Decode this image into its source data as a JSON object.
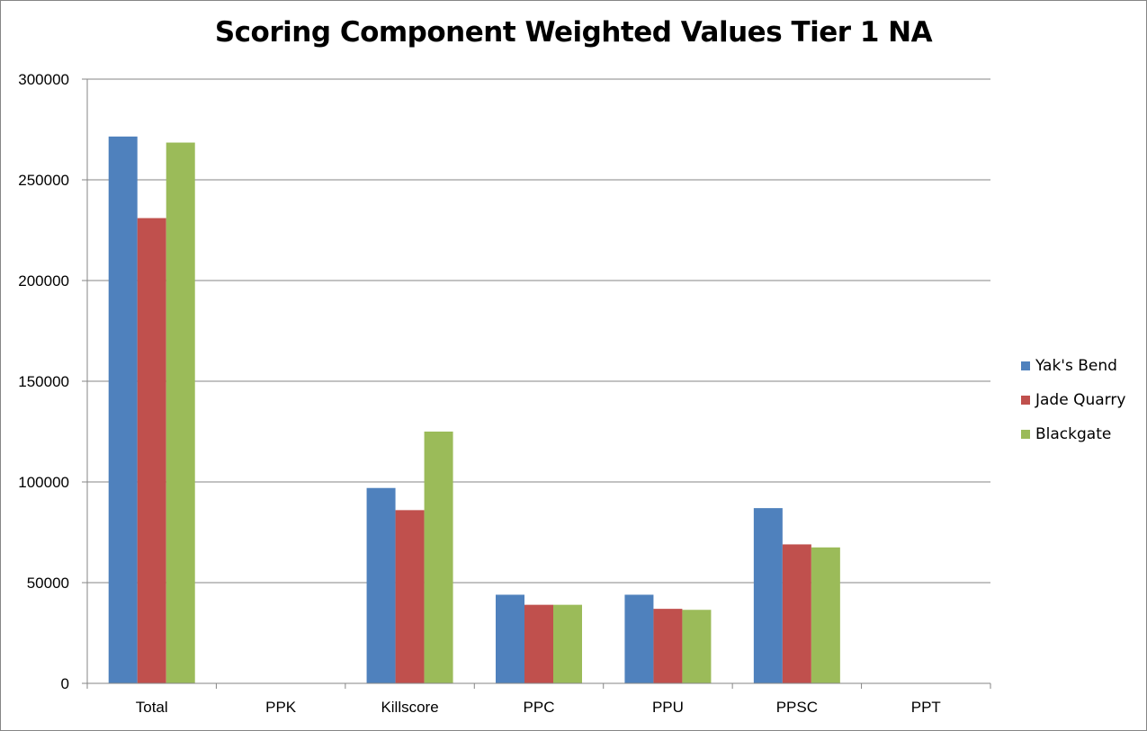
{
  "chart_data": {
    "type": "bar",
    "title": "Scoring Component Weighted Values Tier 1 NA",
    "xlabel": "",
    "ylabel": "",
    "ylim": [
      0,
      300000
    ],
    "yticks": [
      "0",
      "50000",
      "100000",
      "150000",
      "200000",
      "250000",
      "300000"
    ],
    "grid": true,
    "legend_position": "right",
    "categories": [
      "Total",
      "PPK",
      "Killscore",
      "PPC",
      "PPU",
      "PPSC",
      "PPT"
    ],
    "series": [
      {
        "name": "Yak's Bend",
        "color": "#4F81BD",
        "values": [
          271500,
          0,
          97000,
          44000,
          44000,
          87000,
          0
        ]
      },
      {
        "name": "Jade Quarry",
        "color": "#C0504D",
        "values": [
          231000,
          0,
          86000,
          39000,
          37000,
          69000,
          0
        ]
      },
      {
        "name": "Blackgate",
        "color": "#9BBB59",
        "values": [
          268500,
          0,
          125000,
          39000,
          36500,
          67500,
          0
        ]
      }
    ]
  }
}
